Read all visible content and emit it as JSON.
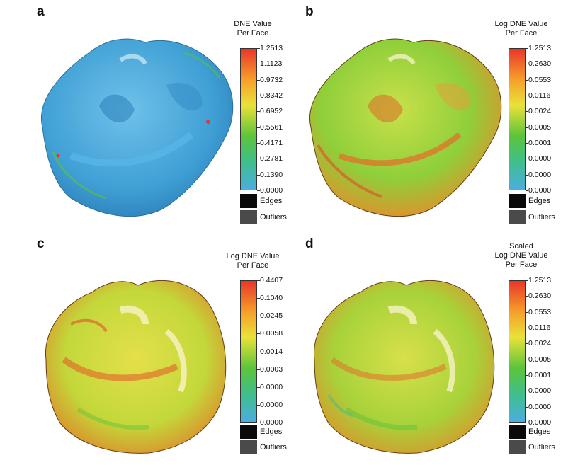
{
  "panels": [
    {
      "letter": "a",
      "legend_title_lines": [
        "DNE Value",
        "Per Face"
      ],
      "ticks": [
        "1.2513",
        "1.1123",
        "0.9732",
        "0.8342",
        "0.6952",
        "0.5561",
        "0.4171",
        "0.2781",
        "0.1390",
        "0.0000"
      ],
      "edges_label": "Edges",
      "outliers_label": "Outliers",
      "colormap": "blue-dominant"
    },
    {
      "letter": "b",
      "legend_title_lines": [
        "Log DNE Value",
        "Per Face"
      ],
      "ticks": [
        "1.2513",
        "0.2630",
        "0.0553",
        "0.0116",
        "0.0024",
        "0.0005",
        "0.0001",
        "0.0000",
        "0.0000",
        "0.0000"
      ],
      "edges_label": "Edges",
      "outliers_label": "Outliers",
      "colormap": "green-orange"
    },
    {
      "letter": "c",
      "legend_title_lines": [
        "Log DNE Value",
        "Per Face"
      ],
      "ticks": [
        "0.4407",
        "0.1040",
        "0.0245",
        "0.0058",
        "0.0014",
        "0.0003",
        "0.0000",
        "0.0000",
        "0.0000"
      ],
      "edges_label": "Edges",
      "outliers_label": "Outliers",
      "colormap": "yellow-orange"
    },
    {
      "letter": "d",
      "legend_title_lines": [
        "Scaled",
        "Log DNE Value",
        "Per Face"
      ],
      "ticks": [
        "1.2513",
        "0.2630",
        "0.0553",
        "0.0116",
        "0.0024",
        "0.0005",
        "0.0001",
        "0.0000",
        "0.0000",
        "0.0000"
      ],
      "edges_label": "Edges",
      "outliers_label": "Outliers",
      "colormap": "yellow-green"
    }
  ],
  "colors": {
    "edges": "#0a0a0a",
    "outliers": "#4a4a4a",
    "red": "#e8362a",
    "orange": "#f5a02a",
    "yellow": "#e9e23a",
    "green": "#5cc43a",
    "blue": "#4aaee0"
  }
}
